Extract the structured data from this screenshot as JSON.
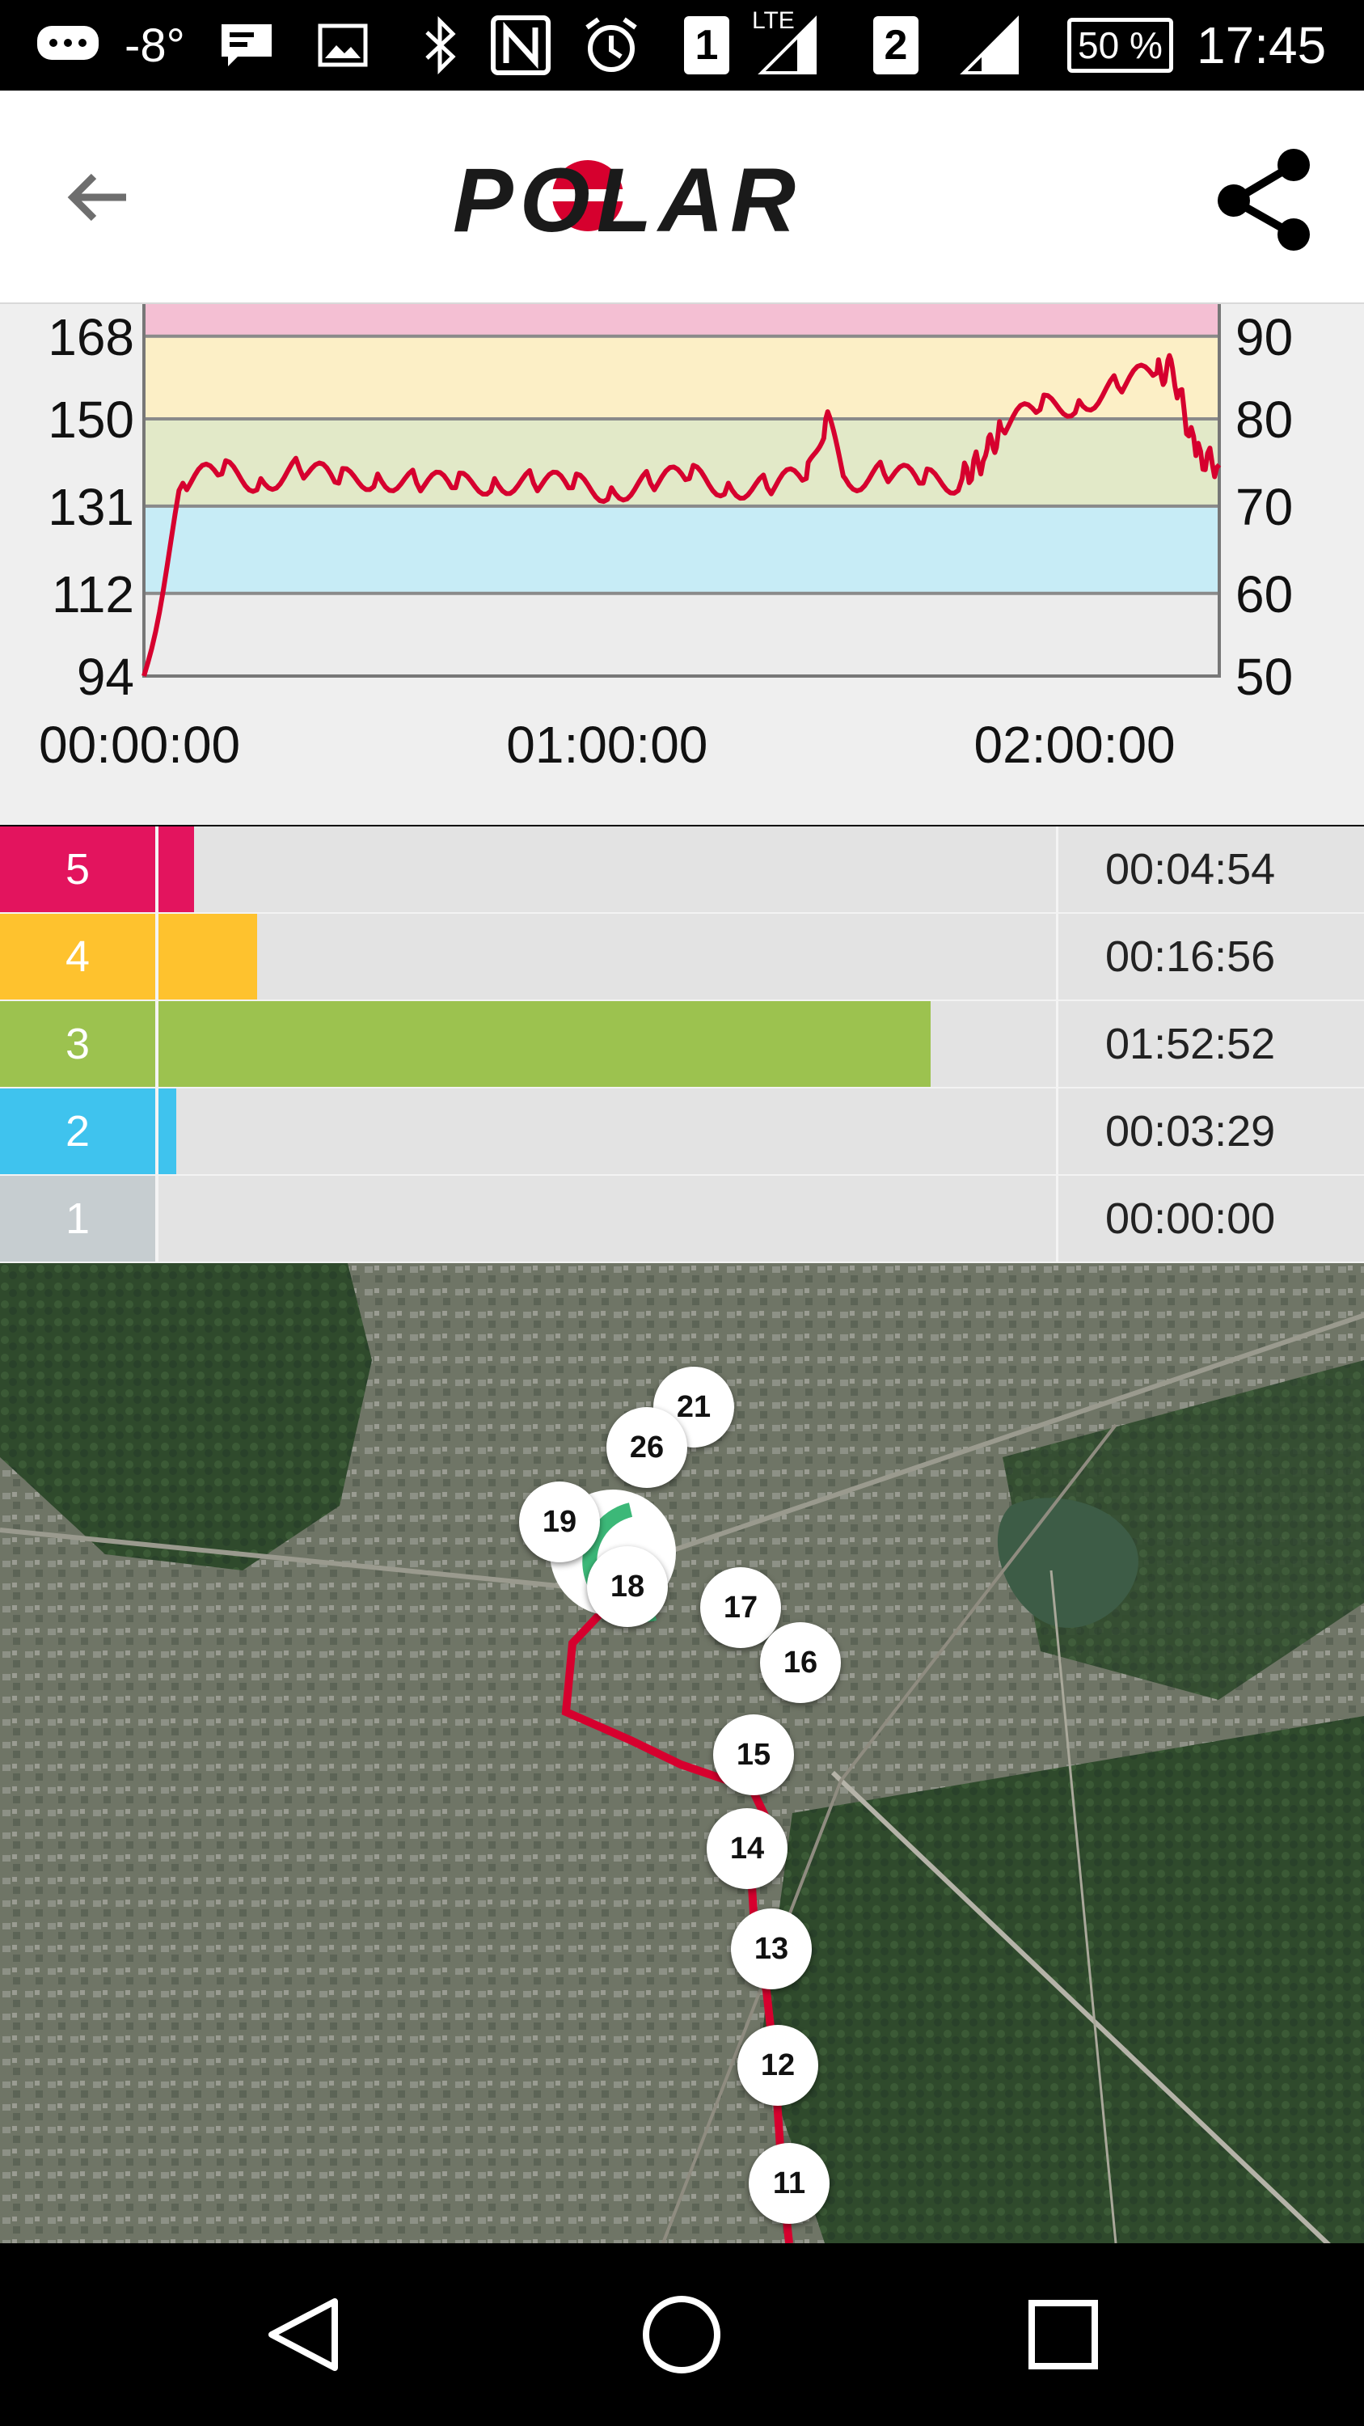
{
  "status_bar": {
    "temperature": "-8°",
    "sim1": "1",
    "network_type": "LTE",
    "sim2": "2",
    "battery": "50 %",
    "time": "17:45",
    "icons": [
      "chat-bubble-icon",
      "message-icon",
      "image-icon",
      "bluetooth-icon",
      "nfc-icon",
      "alarm-icon",
      "signal-icon"
    ]
  },
  "app_bar": {
    "logo": "POLAR",
    "back_icon": "arrow-back-icon",
    "share_icon": "share-icon"
  },
  "chart_data": {
    "type": "line",
    "series": [
      {
        "color": "#d6002e",
        "x": [
          "00:00:00",
          "00:05:00",
          "00:10:00",
          "00:15:00",
          "00:20:00",
          "00:25:00",
          "00:30:00",
          "00:35:00",
          "00:40:00",
          "00:45:00",
          "00:50:00",
          "00:55:00",
          "01:00:00",
          "01:05:00",
          "01:10:00",
          "01:15:00",
          "01:20:00",
          "01:25:00",
          "01:27:30",
          "01:30:00",
          "01:35:00",
          "01:40:00",
          "01:45:00",
          "01:48:00",
          "01:50:00",
          "01:55:00",
          "02:00:00",
          "02:05:00",
          "02:10:00",
          "02:12:00",
          "02:15:00",
          "02:18:00"
        ],
        "y": [
          94,
          136,
          138,
          137,
          139,
          136,
          138,
          136,
          135,
          137,
          136,
          135,
          135,
          136,
          137,
          136,
          135,
          137,
          150,
          137,
          138,
          136,
          137,
          142,
          148,
          152,
          154,
          157,
          160,
          161,
          142,
          140
        ]
      }
    ],
    "y_left_ticks": [
      "168",
      "150",
      "131",
      "112",
      "94"
    ],
    "y_right_ticks": [
      "90",
      "80",
      "70",
      "60",
      "50"
    ],
    "x_ticks": [
      "00:00:00",
      "01:00:00",
      "02:00:00"
    ],
    "ylim": [
      94,
      175
    ],
    "zones_bands": [
      {
        "from": 168,
        "to": 175,
        "color": "#f4bfd3"
      },
      {
        "from": 150,
        "to": 168,
        "color": "#fcefc6"
      },
      {
        "from": 131,
        "to": 150,
        "color": "#e2e9c8"
      },
      {
        "from": 112,
        "to": 131,
        "color": "#c7ecf6"
      },
      {
        "from": 94,
        "to": 112,
        "color": "#ececec"
      }
    ],
    "grid": true
  },
  "zones": [
    {
      "zone": "5",
      "time": "00:04:54",
      "fraction": 0.04,
      "color": "#e3145e"
    },
    {
      "zone": "4",
      "time": "00:16:56",
      "fraction": 0.11,
      "color": "#fec22e"
    },
    {
      "zone": "3",
      "time": "01:52:52",
      "fraction": 0.86,
      "color": "#9cc24f"
    },
    {
      "zone": "2",
      "time": "00:03:29",
      "fraction": 0.02,
      "color": "#3fc3ee"
    },
    {
      "zone": "1",
      "time": "00:00:00",
      "fraction": 0.0,
      "color": "#c6cdd0"
    }
  ],
  "map": {
    "laps": [
      "21",
      "26",
      "19",
      "18",
      "17",
      "16",
      "15",
      "14",
      "13",
      "12",
      "11"
    ],
    "route_color": "#d6002e",
    "start_marker_color": "#3cb878"
  },
  "nav_bar": {
    "back_icon": "nav-back-icon",
    "home_icon": "nav-home-icon",
    "recents_icon": "nav-recents-icon"
  }
}
